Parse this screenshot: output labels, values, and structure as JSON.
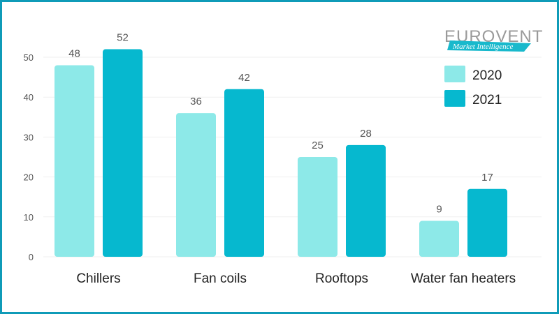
{
  "chart_data": {
    "type": "bar",
    "categories": [
      "Chillers",
      "Fan coils",
      "Rooftops",
      "Water fan heaters"
    ],
    "series": [
      {
        "name": "2020",
        "values": [
          48,
          36,
          25,
          9
        ],
        "color": "#8de9e8"
      },
      {
        "name": "2021",
        "values": [
          52,
          42,
          28,
          17
        ],
        "color": "#06b8cf"
      }
    ],
    "y_ticks": [
      0,
      10,
      20,
      30,
      40,
      50
    ],
    "ylim": [
      0,
      50
    ],
    "grid": true,
    "legend_position": "top-right"
  },
  "logo": {
    "name": "EUROVENT",
    "tagline": "Market Intelligence"
  }
}
